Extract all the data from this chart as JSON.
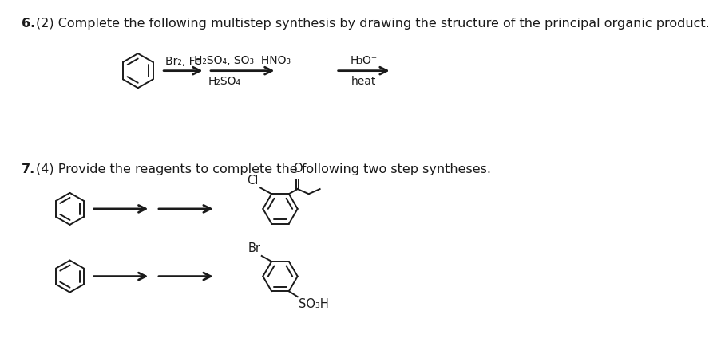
{
  "title6": "6.",
  "desc6": "(2) Complete the following multistep synthesis by drawing the structure of the principal organic product.",
  "title7": "7.",
  "desc7": "(4) Provide the reagents to complete the following two step syntheses.",
  "reagent1": "Br₂, Fe",
  "reagent2_top": "H₂SO₄, SO₃  HNO₃",
  "reagent2_bot": "H₂SO₄",
  "reagent3_top": "H₃O⁺",
  "reagent3_bot": "heat",
  "bg_color": "#ffffff",
  "text_color": "#1a1a1a",
  "font_size_main": 11.5,
  "font_size_chem": 10.5
}
